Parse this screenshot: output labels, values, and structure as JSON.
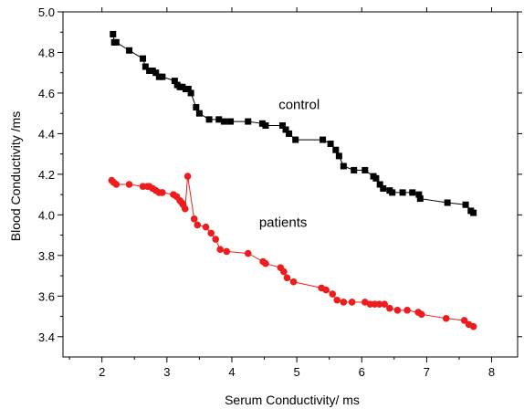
{
  "chart_data": {
    "type": "scatter",
    "xlabel": "Serum Conductivity/ ms",
    "ylabel": "Blood Conductivity /ms",
    "xlim": [
      1.4,
      8.4
    ],
    "ylim": [
      3.3,
      5.0
    ],
    "x_ticks": [
      2,
      3,
      4,
      5,
      6,
      7,
      8
    ],
    "x_tick_labels": [
      "2",
      "3",
      "4",
      "5",
      "6",
      "7",
      "8"
    ],
    "y_ticks": [
      3.4,
      3.6,
      3.8,
      4.0,
      4.2,
      4.4,
      4.6,
      4.8,
      5.0
    ],
    "y_tick_labels": [
      "3.4",
      "3.6",
      "3.8",
      "4.0",
      "4.2",
      "4.4",
      "4.6",
      "4.8",
      "5.0"
    ],
    "grid": false,
    "legend": "none",
    "series": [
      {
        "name": "control",
        "color": "#000000",
        "marker": "square",
        "label_at": [
          4.72,
          4.52
        ],
        "points": [
          [
            2.17,
            4.89
          ],
          [
            2.19,
            4.85
          ],
          [
            2.22,
            4.85
          ],
          [
            2.42,
            4.81
          ],
          [
            2.63,
            4.77
          ],
          [
            2.67,
            4.73
          ],
          [
            2.73,
            4.71
          ],
          [
            2.78,
            4.71
          ],
          [
            2.83,
            4.7
          ],
          [
            2.88,
            4.68
          ],
          [
            2.93,
            4.68
          ],
          [
            3.12,
            4.66
          ],
          [
            3.16,
            4.64
          ],
          [
            3.2,
            4.63
          ],
          [
            3.24,
            4.63
          ],
          [
            3.29,
            4.62
          ],
          [
            3.33,
            4.62
          ],
          [
            3.37,
            4.6
          ],
          [
            3.45,
            4.53
          ],
          [
            3.5,
            4.5
          ],
          [
            3.65,
            4.47
          ],
          [
            3.8,
            4.47
          ],
          [
            3.88,
            4.46
          ],
          [
            3.98,
            4.46
          ],
          [
            4.25,
            4.46
          ],
          [
            4.47,
            4.45
          ],
          [
            4.52,
            4.44
          ],
          [
            4.78,
            4.44
          ],
          [
            4.83,
            4.42
          ],
          [
            4.88,
            4.4
          ],
          [
            4.98,
            4.37
          ],
          [
            5.4,
            4.37
          ],
          [
            5.52,
            4.35
          ],
          [
            5.6,
            4.32
          ],
          [
            5.65,
            4.29
          ],
          [
            5.72,
            4.24
          ],
          [
            5.88,
            4.22
          ],
          [
            6.05,
            4.22
          ],
          [
            6.18,
            4.19
          ],
          [
            6.22,
            4.18
          ],
          [
            6.28,
            4.15
          ],
          [
            6.33,
            4.13
          ],
          [
            6.43,
            4.12
          ],
          [
            6.47,
            4.11
          ],
          [
            6.63,
            4.11
          ],
          [
            6.78,
            4.11
          ],
          [
            6.88,
            4.1
          ],
          [
            6.9,
            4.08
          ],
          [
            7.32,
            4.06
          ],
          [
            7.6,
            4.05
          ],
          [
            7.68,
            4.02
          ],
          [
            7.72,
            4.01
          ]
        ]
      },
      {
        "name": "patients",
        "color": "#ee1c1c",
        "marker": "circle",
        "label_at": [
          4.42,
          3.94
        ],
        "points": [
          [
            2.15,
            4.17
          ],
          [
            2.18,
            4.16
          ],
          [
            2.22,
            4.15
          ],
          [
            2.42,
            4.15
          ],
          [
            2.63,
            4.14
          ],
          [
            2.7,
            4.14
          ],
          [
            2.73,
            4.14
          ],
          [
            2.78,
            4.13
          ],
          [
            2.83,
            4.12
          ],
          [
            2.88,
            4.11
          ],
          [
            2.93,
            4.11
          ],
          [
            3.1,
            4.1
          ],
          [
            3.15,
            4.09
          ],
          [
            3.2,
            4.07
          ],
          [
            3.23,
            4.06
          ],
          [
            3.25,
            4.05
          ],
          [
            3.28,
            4.03
          ],
          [
            3.32,
            4.19
          ],
          [
            3.42,
            3.98
          ],
          [
            3.47,
            3.95
          ],
          [
            3.6,
            3.94
          ],
          [
            3.68,
            3.91
          ],
          [
            3.75,
            3.88
          ],
          [
            3.82,
            3.83
          ],
          [
            3.92,
            3.82
          ],
          [
            4.25,
            3.81
          ],
          [
            4.48,
            3.77
          ],
          [
            4.52,
            3.76
          ],
          [
            4.75,
            3.74
          ],
          [
            4.8,
            3.72
          ],
          [
            4.85,
            3.69
          ],
          [
            4.95,
            3.67
          ],
          [
            5.38,
            3.64
          ],
          [
            5.45,
            3.63
          ],
          [
            5.55,
            3.61
          ],
          [
            5.62,
            3.58
          ],
          [
            5.72,
            3.57
          ],
          [
            5.85,
            3.57
          ],
          [
            6.05,
            3.57
          ],
          [
            6.13,
            3.56
          ],
          [
            6.2,
            3.56
          ],
          [
            6.27,
            3.56
          ],
          [
            6.35,
            3.56
          ],
          [
            6.43,
            3.54
          ],
          [
            6.55,
            3.53
          ],
          [
            6.7,
            3.53
          ],
          [
            6.87,
            3.52
          ],
          [
            6.92,
            3.51
          ],
          [
            7.3,
            3.49
          ],
          [
            7.58,
            3.48
          ],
          [
            7.65,
            3.46
          ],
          [
            7.72,
            3.45
          ]
        ]
      }
    ]
  }
}
